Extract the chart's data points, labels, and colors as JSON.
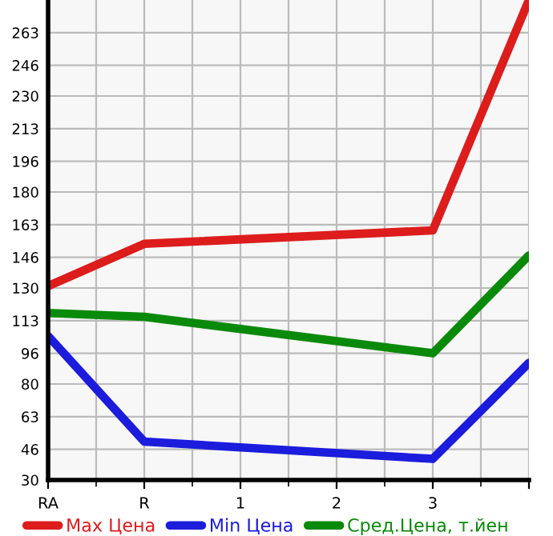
{
  "chart_data": {
    "type": "line",
    "categories": [
      "RA",
      "R",
      "1",
      "2",
      "3",
      null
    ],
    "series": [
      {
        "name": "Max Цена",
        "color": "#dd1c1c",
        "values": [
          131,
          153,
          null,
          null,
          160,
          280
        ]
      },
      {
        "name": "Min Цена",
        "color": "#1c1cdd",
        "values": [
          105,
          50,
          null,
          null,
          41,
          91
        ]
      },
      {
        "name": "Сред.Цена, т.йен",
        "color": "#0a8a0a",
        "values": [
          117,
          115,
          null,
          null,
          96,
          147
        ]
      }
    ],
    "ylim": [
      30,
      280
    ],
    "yticks": [
      30,
      46,
      63,
      80,
      96,
      113,
      130,
      146,
      163,
      180,
      196,
      213,
      230,
      246,
      263
    ],
    "grid": true,
    "legend": "bottom",
    "marker": "none",
    "line_style": "solid"
  }
}
